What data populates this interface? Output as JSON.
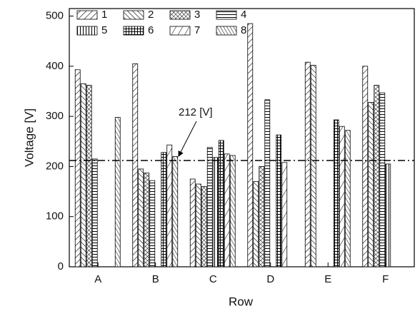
{
  "chart_data": {
    "type": "bar",
    "x_label": "Row",
    "y_label": "Voltage [V]",
    "categories": [
      "A",
      "B",
      "C",
      "D",
      "E",
      "F"
    ],
    "series": [
      {
        "name": "1",
        "color": "#000000",
        "values": [
          393,
          405,
          175,
          485,
          408,
          400
        ]
      },
      {
        "name": "2",
        "color": "#000000",
        "values": [
          365,
          195,
          165,
          170,
          402,
          328
        ]
      },
      {
        "name": "3",
        "color": "#000000",
        "values": [
          362,
          187,
          160,
          200,
          null,
          362
        ]
      },
      {
        "name": "4",
        "color": "#000000",
        "values": [
          215,
          172,
          238,
          333,
          null,
          347
        ]
      },
      {
        "name": "5",
        "color": "#000000",
        "values": [
          null,
          null,
          218,
          null,
          null,
          205
        ]
      },
      {
        "name": "6",
        "color": "#000000",
        "values": [
          null,
          228,
          252,
          263,
          293,
          null
        ]
      },
      {
        "name": "7",
        "color": "#000000",
        "values": [
          null,
          243,
          225,
          208,
          280,
          null
        ]
      },
      {
        "name": "8",
        "color": "#000000",
        "values": [
          298,
          220,
          222,
          null,
          272,
          null
        ]
      }
    ],
    "ylim": [
      0,
      515
    ],
    "yticks": [
      0,
      100,
      200,
      300,
      400,
      500
    ],
    "reference_line": {
      "value": 212,
      "label": "212 [V]"
    }
  }
}
